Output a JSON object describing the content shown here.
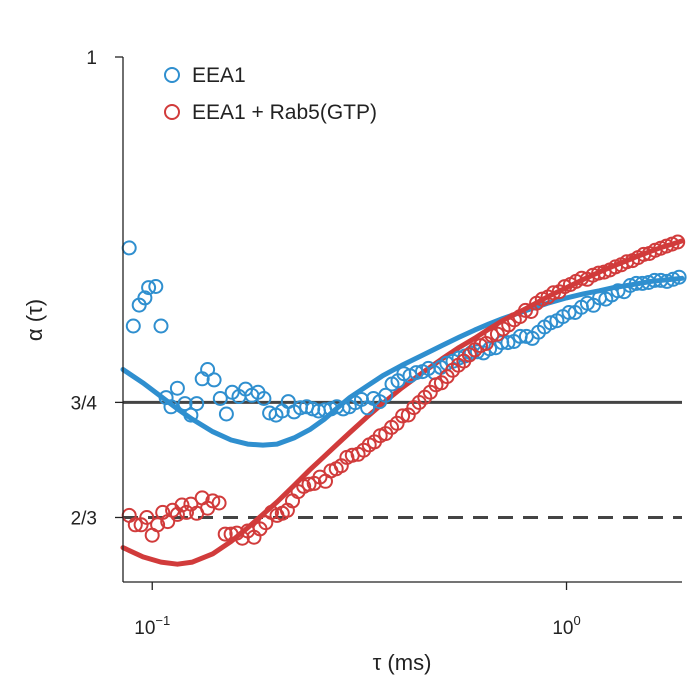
{
  "chart_data": {
    "type": "scatter",
    "title": "",
    "xlabel": "τ (ms)",
    "ylabel": "α (τ)",
    "x_scale": "log",
    "xlim": [
      0.085,
      1.9
    ],
    "ylim": [
      0.62,
      1.0
    ],
    "x_ticks": [
      {
        "value": 0.1,
        "base": "10",
        "exp": "−1"
      },
      {
        "value": 1.0,
        "base": "10",
        "exp": "0"
      }
    ],
    "y_ticks": [
      {
        "value": 1.0,
        "label": "1"
      },
      {
        "value": 0.75,
        "label": "3/4"
      },
      {
        "value": 0.6667,
        "label": "2/3"
      }
    ],
    "reference_lines": [
      {
        "name": "three-quarter-line",
        "value": 0.75,
        "style": "solid",
        "color": "#444444"
      },
      {
        "name": "two-thirds-line",
        "value": 0.6667,
        "style": "dashed",
        "color": "#444444"
      }
    ],
    "legend": {
      "position": "top-left"
    },
    "series": [
      {
        "name": "EEA1",
        "color": "#2f8fcf",
        "marker": "open-circle",
        "points": [
          [
            0.088,
            0.8618
          ],
          [
            0.09,
            0.8053
          ],
          [
            0.093,
            0.8204
          ],
          [
            0.096,
            0.8256
          ],
          [
            0.098,
            0.8331
          ],
          [
            0.102,
            0.8339
          ],
          [
            0.105,
            0.8053
          ],
          [
            0.108,
            0.7535
          ],
          [
            0.111,
            0.7468
          ],
          [
            0.115,
            0.7603
          ],
          [
            0.12,
            0.7491
          ],
          [
            0.124,
            0.7408
          ],
          [
            0.128,
            0.7491
          ],
          [
            0.132,
            0.7671
          ],
          [
            0.136,
            0.7738
          ],
          [
            0.141,
            0.7663
          ],
          [
            0.146,
            0.7528
          ],
          [
            0.151,
            0.7416
          ],
          [
            0.156,
            0.7573
          ],
          [
            0.162,
            0.7543
          ],
          [
            0.168,
            0.7596
          ],
          [
            0.174,
            0.7551
          ],
          [
            0.18,
            0.7573
          ],
          [
            0.186,
            0.7528
          ],
          [
            0.192,
            0.7423
          ],
          [
            0.199,
            0.7408
          ],
          [
            0.206,
            0.7438
          ],
          [
            0.213,
            0.7506
          ],
          [
            0.22,
            0.7431
          ],
          [
            0.228,
            0.7461
          ],
          [
            0.236,
            0.7468
          ],
          [
            0.244,
            0.7453
          ],
          [
            0.252,
            0.7438
          ],
          [
            0.261,
            0.7446
          ],
          [
            0.27,
            0.7453
          ],
          [
            0.279,
            0.7468
          ],
          [
            0.289,
            0.7453
          ],
          [
            0.299,
            0.7468
          ],
          [
            0.309,
            0.7498
          ],
          [
            0.32,
            0.7521
          ],
          [
            0.331,
            0.7461
          ],
          [
            0.342,
            0.7528
          ],
          [
            0.354,
            0.7506
          ],
          [
            0.366,
            0.7551
          ],
          [
            0.379,
            0.7633
          ],
          [
            0.392,
            0.7656
          ],
          [
            0.405,
            0.7708
          ],
          [
            0.419,
            0.7693
          ],
          [
            0.434,
            0.7716
          ],
          [
            0.449,
            0.7723
          ],
          [
            0.464,
            0.7746
          ],
          [
            0.48,
            0.7716
          ],
          [
            0.497,
            0.7753
          ],
          [
            0.514,
            0.7783
          ],
          [
            0.532,
            0.7798
          ],
          [
            0.55,
            0.7821
          ],
          [
            0.569,
            0.7836
          ],
          [
            0.589,
            0.7858
          ],
          [
            0.609,
            0.7866
          ],
          [
            0.63,
            0.7858
          ],
          [
            0.652,
            0.7888
          ],
          [
            0.675,
            0.7896
          ],
          [
            0.698,
            0.7933
          ],
          [
            0.722,
            0.7933
          ],
          [
            0.747,
            0.7941
          ],
          [
            0.773,
            0.7978
          ],
          [
            0.8,
            0.7978
          ],
          [
            0.827,
            0.7963
          ],
          [
            0.856,
            0.8008
          ],
          [
            0.885,
            0.8046
          ],
          [
            0.916,
            0.8076
          ],
          [
            0.948,
            0.8091
          ],
          [
            0.98,
            0.8121
          ],
          [
            1.014,
            0.8151
          ],
          [
            1.049,
            0.8151
          ],
          [
            1.086,
            0.8188
          ],
          [
            1.123,
            0.8218
          ],
          [
            1.162,
            0.8203
          ],
          [
            1.202,
            0.8256
          ],
          [
            1.244,
            0.8248
          ],
          [
            1.287,
            0.8278
          ],
          [
            1.331,
            0.8308
          ],
          [
            1.377,
            0.8301
          ],
          [
            1.425,
            0.8346
          ],
          [
            1.474,
            0.8361
          ],
          [
            1.525,
            0.8361
          ],
          [
            1.578,
            0.8368
          ],
          [
            1.632,
            0.8383
          ],
          [
            1.689,
            0.8383
          ],
          [
            1.747,
            0.8376
          ],
          [
            1.808,
            0.8391
          ],
          [
            1.87,
            0.8406
          ]
        ],
        "fit": [
          [
            0.085,
            0.7738
          ],
          [
            0.095,
            0.7641
          ],
          [
            0.105,
            0.7543
          ],
          [
            0.115,
            0.7453
          ],
          [
            0.125,
            0.7378
          ],
          [
            0.14,
            0.7288
          ],
          [
            0.155,
            0.7228
          ],
          [
            0.17,
            0.7198
          ],
          [
            0.185,
            0.7191
          ],
          [
            0.2,
            0.7198
          ],
          [
            0.22,
            0.7243
          ],
          [
            0.24,
            0.7303
          ],
          [
            0.26,
            0.7378
          ],
          [
            0.28,
            0.7461
          ],
          [
            0.3,
            0.7536
          ],
          [
            0.33,
            0.7618
          ],
          [
            0.36,
            0.7693
          ],
          [
            0.4,
            0.7768
          ],
          [
            0.45,
            0.7843
          ],
          [
            0.5,
            0.7911
          ],
          [
            0.55,
            0.7971
          ],
          [
            0.6,
            0.8023
          ],
          [
            0.65,
            0.8068
          ],
          [
            0.7,
            0.8106
          ],
          [
            0.8,
            0.8166
          ],
          [
            0.9,
            0.8218
          ],
          [
            1.0,
            0.8256
          ],
          [
            1.1,
            0.8286
          ],
          [
            1.2,
            0.8308
          ],
          [
            1.3,
            0.8331
          ],
          [
            1.4,
            0.8346
          ],
          [
            1.5,
            0.8361
          ],
          [
            1.6,
            0.8376
          ],
          [
            1.7,
            0.8384
          ],
          [
            1.8,
            0.8391
          ],
          [
            1.9,
            0.8398
          ]
        ]
      },
      {
        "name": "EEA1 + Rab5(GTP)",
        "color": "#d13b3b",
        "marker": "open-circle",
        "points": [
          [
            0.088,
            0.6682
          ],
          [
            0.091,
            0.6614
          ],
          [
            0.094,
            0.6614
          ],
          [
            0.097,
            0.6667
          ],
          [
            0.1,
            0.6539
          ],
          [
            0.103,
            0.6614
          ],
          [
            0.106,
            0.6704
          ],
          [
            0.109,
            0.6637
          ],
          [
            0.112,
            0.6719
          ],
          [
            0.115,
            0.6689
          ],
          [
            0.118,
            0.6757
          ],
          [
            0.121,
            0.6704
          ],
          [
            0.124,
            0.6764
          ],
          [
            0.128,
            0.6697
          ],
          [
            0.132,
            0.6809
          ],
          [
            0.136,
            0.6734
          ],
          [
            0.14,
            0.6787
          ],
          [
            0.145,
            0.6772
          ],
          [
            0.15,
            0.6547
          ],
          [
            0.155,
            0.6547
          ],
          [
            0.16,
            0.6554
          ],
          [
            0.165,
            0.6517
          ],
          [
            0.17,
            0.6569
          ],
          [
            0.176,
            0.6524
          ],
          [
            0.182,
            0.6584
          ],
          [
            0.188,
            0.6629
          ],
          [
            0.194,
            0.6704
          ],
          [
            0.2,
            0.6682
          ],
          [
            0.206,
            0.6697
          ],
          [
            0.212,
            0.6719
          ],
          [
            0.218,
            0.6787
          ],
          [
            0.225,
            0.6854
          ],
          [
            0.232,
            0.6892
          ],
          [
            0.239,
            0.6907
          ],
          [
            0.246,
            0.6914
          ],
          [
            0.254,
            0.6959
          ],
          [
            0.262,
            0.6929
          ],
          [
            0.27,
            0.7004
          ],
          [
            0.278,
            0.7019
          ],
          [
            0.286,
            0.7042
          ],
          [
            0.295,
            0.7102
          ],
          [
            0.304,
            0.7117
          ],
          [
            0.314,
            0.7124
          ],
          [
            0.324,
            0.7154
          ],
          [
            0.334,
            0.7192
          ],
          [
            0.344,
            0.7214
          ],
          [
            0.355,
            0.7259
          ],
          [
            0.366,
            0.7274
          ],
          [
            0.378,
            0.7319
          ],
          [
            0.39,
            0.7349
          ],
          [
            0.402,
            0.7402
          ],
          [
            0.415,
            0.7409
          ],
          [
            0.428,
            0.7462
          ],
          [
            0.441,
            0.7499
          ],
          [
            0.455,
            0.7537
          ],
          [
            0.469,
            0.7574
          ],
          [
            0.484,
            0.7627
          ],
          [
            0.499,
            0.7642
          ],
          [
            0.515,
            0.7687
          ],
          [
            0.531,
            0.7732
          ],
          [
            0.548,
            0.7769
          ],
          [
            0.565,
            0.7799
          ],
          [
            0.583,
            0.7844
          ],
          [
            0.601,
            0.7881
          ],
          [
            0.62,
            0.7911
          ],
          [
            0.64,
            0.7926
          ],
          [
            0.66,
            0.7986
          ],
          [
            0.681,
            0.7994
          ],
          [
            0.703,
            0.8031
          ],
          [
            0.725,
            0.8061
          ],
          [
            0.748,
            0.8098
          ],
          [
            0.772,
            0.8121
          ],
          [
            0.796,
            0.8166
          ],
          [
            0.821,
            0.8158
          ],
          [
            0.847,
            0.8218
          ],
          [
            0.874,
            0.8248
          ],
          [
            0.902,
            0.8263
          ],
          [
            0.93,
            0.8293
          ],
          [
            0.96,
            0.8301
          ],
          [
            0.99,
            0.8338
          ],
          [
            1.022,
            0.8353
          ],
          [
            1.054,
            0.8376
          ],
          [
            1.088,
            0.8398
          ],
          [
            1.122,
            0.8391
          ],
          [
            1.158,
            0.8421
          ],
          [
            1.195,
            0.8436
          ],
          [
            1.233,
            0.8443
          ],
          [
            1.272,
            0.8458
          ],
          [
            1.313,
            0.8481
          ],
          [
            1.355,
            0.8496
          ],
          [
            1.398,
            0.8518
          ],
          [
            1.443,
            0.8526
          ],
          [
            1.489,
            0.8548
          ],
          [
            1.536,
            0.8571
          ],
          [
            1.585,
            0.8578
          ],
          [
            1.636,
            0.8601
          ],
          [
            1.688,
            0.8616
          ],
          [
            1.742,
            0.8631
          ],
          [
            1.797,
            0.8646
          ],
          [
            1.855,
            0.8661
          ]
        ],
        "fit": [
          [
            0.085,
            0.6449
          ],
          [
            0.095,
            0.6382
          ],
          [
            0.105,
            0.6344
          ],
          [
            0.115,
            0.6329
          ],
          [
            0.125,
            0.6344
          ],
          [
            0.14,
            0.6404
          ],
          [
            0.155,
            0.6494
          ],
          [
            0.17,
            0.6592
          ],
          [
            0.185,
            0.6689
          ],
          [
            0.2,
            0.6779
          ],
          [
            0.22,
            0.6899
          ],
          [
            0.24,
            0.7012
          ],
          [
            0.26,
            0.7109
          ],
          [
            0.28,
            0.7199
          ],
          [
            0.3,
            0.7282
          ],
          [
            0.33,
            0.7394
          ],
          [
            0.36,
            0.7492
          ],
          [
            0.4,
            0.7604
          ],
          [
            0.45,
            0.7717
          ],
          [
            0.5,
            0.7814
          ],
          [
            0.55,
            0.7897
          ],
          [
            0.6,
            0.7964
          ],
          [
            0.65,
            0.8031
          ],
          [
            0.7,
            0.8091
          ],
          [
            0.8,
            0.8181
          ],
          [
            0.9,
            0.8264
          ],
          [
            1.0,
            0.8331
          ],
          [
            1.1,
            0.8391
          ],
          [
            1.2,
            0.8443
          ],
          [
            1.3,
            0.8488
          ],
          [
            1.4,
            0.8526
          ],
          [
            1.5,
            0.8563
          ],
          [
            1.6,
            0.8594
          ],
          [
            1.7,
            0.8623
          ],
          [
            1.8,
            0.8646
          ],
          [
            1.9,
            0.8669
          ]
        ]
      }
    ]
  }
}
